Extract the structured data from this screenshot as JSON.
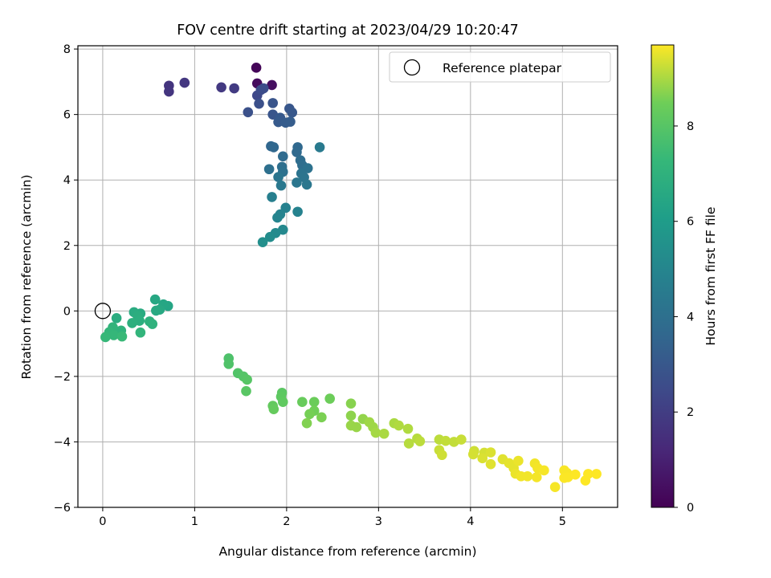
{
  "chart_data": {
    "type": "scatter",
    "title": "FOV centre drift starting at 2023/04/29 10:20:47",
    "xlabel": "Angular distance from reference (arcmin)",
    "ylabel": "Rotation from reference (arcmin)",
    "xlim": [
      -0.27,
      5.6
    ],
    "ylim": [
      -6.0,
      8.1
    ],
    "xticks": [
      0,
      1,
      2,
      3,
      4,
      5
    ],
    "yticks": [
      -6,
      -4,
      -2,
      0,
      2,
      4,
      6,
      8
    ],
    "grid": true,
    "legend": {
      "position": "top-right",
      "entries": [
        "Reference platepar"
      ]
    },
    "reference_point": {
      "x": 0,
      "y": 0
    },
    "colorbar": {
      "label": "Hours from first FF file",
      "colormap": "viridis",
      "min": 0,
      "max": 9.7,
      "ticks": [
        0,
        2,
        4,
        6,
        8
      ]
    },
    "series": [
      {
        "values": [
          {
            "x": 1.67,
            "y": 7.43,
            "h": 0.15
          },
          {
            "x": 1.68,
            "y": 6.95,
            "h": 0.3
          },
          {
            "x": 1.84,
            "y": 6.9,
            "h": 0.4
          },
          {
            "x": 0.72,
            "y": 6.88,
            "h": 1.65
          },
          {
            "x": 0.72,
            "y": 6.7,
            "h": 1.7
          },
          {
            "x": 0.89,
            "y": 6.97,
            "h": 1.75
          },
          {
            "x": 1.29,
            "y": 6.83,
            "h": 1.85
          },
          {
            "x": 1.43,
            "y": 6.8,
            "h": 1.9
          },
          {
            "x": 1.68,
            "y": 6.58,
            "h": 2.4
          },
          {
            "x": 1.72,
            "y": 6.75,
            "h": 2.5
          },
          {
            "x": 1.75,
            "y": 6.8,
            "h": 2.6
          },
          {
            "x": 1.7,
            "y": 6.33,
            "h": 2.7
          },
          {
            "x": 1.58,
            "y": 6.07,
            "h": 2.75
          },
          {
            "x": 1.85,
            "y": 6.35,
            "h": 2.85
          },
          {
            "x": 1.85,
            "y": 6.0,
            "h": 2.9
          },
          {
            "x": 2.03,
            "y": 6.18,
            "h": 2.95
          },
          {
            "x": 2.06,
            "y": 6.06,
            "h": 3.0
          },
          {
            "x": 1.93,
            "y": 5.9,
            "h": 3.05
          },
          {
            "x": 1.91,
            "y": 5.77,
            "h": 3.1
          },
          {
            "x": 1.99,
            "y": 5.75,
            "h": 3.15
          },
          {
            "x": 2.04,
            "y": 5.78,
            "h": 3.2
          },
          {
            "x": 1.83,
            "y": 5.03,
            "h": 3.6
          },
          {
            "x": 1.86,
            "y": 5.0,
            "h": 3.65
          },
          {
            "x": 2.12,
            "y": 5.0,
            "h": 3.7
          },
          {
            "x": 2.11,
            "y": 4.85,
            "h": 3.75
          },
          {
            "x": 1.96,
            "y": 4.72,
            "h": 3.8
          },
          {
            "x": 2.15,
            "y": 4.6,
            "h": 3.85
          },
          {
            "x": 2.17,
            "y": 4.45,
            "h": 3.9
          },
          {
            "x": 1.95,
            "y": 4.4,
            "h": 3.95
          },
          {
            "x": 1.81,
            "y": 4.33,
            "h": 4.0
          },
          {
            "x": 1.96,
            "y": 4.25,
            "h": 4.05
          },
          {
            "x": 2.23,
            "y": 4.36,
            "h": 4.1
          },
          {
            "x": 2.16,
            "y": 4.2,
            "h": 4.15
          },
          {
            "x": 2.19,
            "y": 4.08,
            "h": 4.2
          },
          {
            "x": 1.91,
            "y": 4.09,
            "h": 4.25
          },
          {
            "x": 2.11,
            "y": 3.92,
            "h": 4.3
          },
          {
            "x": 2.22,
            "y": 3.86,
            "h": 4.35
          },
          {
            "x": 1.94,
            "y": 3.83,
            "h": 4.4
          },
          {
            "x": 2.36,
            "y": 5.0,
            "h": 4.5
          },
          {
            "x": 1.84,
            "y": 3.48,
            "h": 4.7
          },
          {
            "x": 1.99,
            "y": 3.15,
            "h": 4.8
          },
          {
            "x": 2.12,
            "y": 3.03,
            "h": 4.85
          },
          {
            "x": 1.93,
            "y": 2.95,
            "h": 4.9
          },
          {
            "x": 1.9,
            "y": 2.85,
            "h": 4.95
          },
          {
            "x": 1.96,
            "y": 2.48,
            "h": 5.1
          },
          {
            "x": 1.88,
            "y": 2.38,
            "h": 5.2
          },
          {
            "x": 1.82,
            "y": 2.26,
            "h": 5.3
          },
          {
            "x": 1.74,
            "y": 2.1,
            "h": 5.4
          },
          {
            "x": 0.71,
            "y": 0.15,
            "h": 6.4
          },
          {
            "x": 0.66,
            "y": 0.2,
            "h": 6.45
          },
          {
            "x": 0.57,
            "y": 0.35,
            "h": 6.5
          },
          {
            "x": 0.62,
            "y": 0.04,
            "h": 6.55
          },
          {
            "x": 0.58,
            "y": 0.01,
            "h": 6.6
          },
          {
            "x": 0.41,
            "y": -0.08,
            "h": 6.65
          },
          {
            "x": 0.34,
            "y": -0.04,
            "h": 6.7
          },
          {
            "x": 0.15,
            "y": -0.22,
            "h": 6.75
          },
          {
            "x": 0.38,
            "y": -0.16,
            "h": 6.8
          },
          {
            "x": 0.4,
            "y": -0.3,
            "h": 6.85
          },
          {
            "x": 0.32,
            "y": -0.37,
            "h": 6.9
          },
          {
            "x": 0.51,
            "y": -0.32,
            "h": 6.95
          },
          {
            "x": 0.54,
            "y": -0.4,
            "h": 7.0
          },
          {
            "x": 0.2,
            "y": -0.6,
            "h": 7.05
          },
          {
            "x": 0.11,
            "y": -0.5,
            "h": 7.1
          },
          {
            "x": 0.41,
            "y": -0.66,
            "h": 7.15
          },
          {
            "x": 0.07,
            "y": -0.65,
            "h": 7.2
          },
          {
            "x": 0.12,
            "y": -0.74,
            "h": 7.25
          },
          {
            "x": 0.03,
            "y": -0.8,
            "h": 7.3
          },
          {
            "x": 0.21,
            "y": -0.78,
            "h": 7.35
          },
          {
            "x": 1.37,
            "y": -1.45,
            "h": 7.8
          },
          {
            "x": 1.37,
            "y": -1.62,
            "h": 7.85
          },
          {
            "x": 1.47,
            "y": -1.9,
            "h": 7.9
          },
          {
            "x": 1.53,
            "y": -2.0,
            "h": 7.95
          },
          {
            "x": 1.57,
            "y": -2.1,
            "h": 8.0
          },
          {
            "x": 1.56,
            "y": -2.45,
            "h": 8.05
          },
          {
            "x": 1.95,
            "y": -2.5,
            "h": 8.1
          },
          {
            "x": 1.94,
            "y": -2.62,
            "h": 8.15
          },
          {
            "x": 1.96,
            "y": -2.78,
            "h": 8.2
          },
          {
            "x": 1.85,
            "y": -2.9,
            "h": 8.25
          },
          {
            "x": 1.86,
            "y": -3.0,
            "h": 8.3
          },
          {
            "x": 2.17,
            "y": -2.78,
            "h": 8.35
          },
          {
            "x": 2.3,
            "y": -2.78,
            "h": 8.4
          },
          {
            "x": 2.47,
            "y": -2.68,
            "h": 8.45
          },
          {
            "x": 2.3,
            "y": -3.05,
            "h": 8.5
          },
          {
            "x": 2.25,
            "y": -3.15,
            "h": 8.55
          },
          {
            "x": 2.38,
            "y": -3.25,
            "h": 8.6
          },
          {
            "x": 2.22,
            "y": -3.43,
            "h": 8.65
          },
          {
            "x": 2.7,
            "y": -2.83,
            "h": 8.7
          },
          {
            "x": 2.7,
            "y": -3.2,
            "h": 8.75
          },
          {
            "x": 2.83,
            "y": -3.3,
            "h": 8.8
          },
          {
            "x": 2.7,
            "y": -3.5,
            "h": 8.85
          },
          {
            "x": 2.76,
            "y": -3.55,
            "h": 8.85
          },
          {
            "x": 2.9,
            "y": -3.4,
            "h": 8.9
          },
          {
            "x": 2.94,
            "y": -3.55,
            "h": 8.9
          },
          {
            "x": 2.97,
            "y": -3.72,
            "h": 8.95
          },
          {
            "x": 3.06,
            "y": -3.75,
            "h": 9.0
          },
          {
            "x": 3.17,
            "y": -3.43,
            "h": 9.0
          },
          {
            "x": 3.22,
            "y": -3.5,
            "h": 9.05
          },
          {
            "x": 3.32,
            "y": -3.6,
            "h": 9.05
          },
          {
            "x": 3.33,
            "y": -4.05,
            "h": 9.1
          },
          {
            "x": 3.42,
            "y": -3.9,
            "h": 9.1
          },
          {
            "x": 3.45,
            "y": -3.98,
            "h": 9.15
          },
          {
            "x": 3.66,
            "y": -3.93,
            "h": 9.15
          },
          {
            "x": 3.73,
            "y": -3.97,
            "h": 9.2
          },
          {
            "x": 3.82,
            "y": -4.0,
            "h": 9.2
          },
          {
            "x": 3.9,
            "y": -3.93,
            "h": 9.25
          },
          {
            "x": 3.66,
            "y": -4.25,
            "h": 9.25
          },
          {
            "x": 3.69,
            "y": -4.4,
            "h": 9.3
          },
          {
            "x": 4.04,
            "y": -4.28,
            "h": 9.3
          },
          {
            "x": 4.03,
            "y": -4.38,
            "h": 9.35
          },
          {
            "x": 4.15,
            "y": -4.33,
            "h": 9.35
          },
          {
            "x": 4.13,
            "y": -4.5,
            "h": 9.4
          },
          {
            "x": 4.22,
            "y": -4.32,
            "h": 9.4
          },
          {
            "x": 4.22,
            "y": -4.68,
            "h": 9.45
          },
          {
            "x": 4.35,
            "y": -4.53,
            "h": 9.45
          },
          {
            "x": 4.42,
            "y": -4.65,
            "h": 9.5
          },
          {
            "x": 4.47,
            "y": -4.8,
            "h": 9.5
          },
          {
            "x": 4.52,
            "y": -4.58,
            "h": 9.55
          },
          {
            "x": 4.49,
            "y": -4.97,
            "h": 9.55
          },
          {
            "x": 4.55,
            "y": -5.05,
            "h": 9.6
          },
          {
            "x": 4.62,
            "y": -5.05,
            "h": 9.6
          },
          {
            "x": 4.7,
            "y": -4.66,
            "h": 9.6
          },
          {
            "x": 4.73,
            "y": -4.8,
            "h": 9.62
          },
          {
            "x": 4.72,
            "y": -5.08,
            "h": 9.62
          },
          {
            "x": 4.8,
            "y": -4.87,
            "h": 9.64
          },
          {
            "x": 4.92,
            "y": -5.38,
            "h": 9.64
          },
          {
            "x": 5.02,
            "y": -4.87,
            "h": 9.66
          },
          {
            "x": 5.05,
            "y": -4.95,
            "h": 9.66
          },
          {
            "x": 5.02,
            "y": -5.1,
            "h": 9.68
          },
          {
            "x": 5.06,
            "y": -5.08,
            "h": 9.68
          },
          {
            "x": 5.14,
            "y": -5.0,
            "h": 9.7
          },
          {
            "x": 5.25,
            "y": -5.18,
            "h": 9.7
          },
          {
            "x": 5.28,
            "y": -4.98,
            "h": 9.7
          },
          {
            "x": 5.37,
            "y": -4.98,
            "h": 9.7
          }
        ]
      }
    ]
  }
}
